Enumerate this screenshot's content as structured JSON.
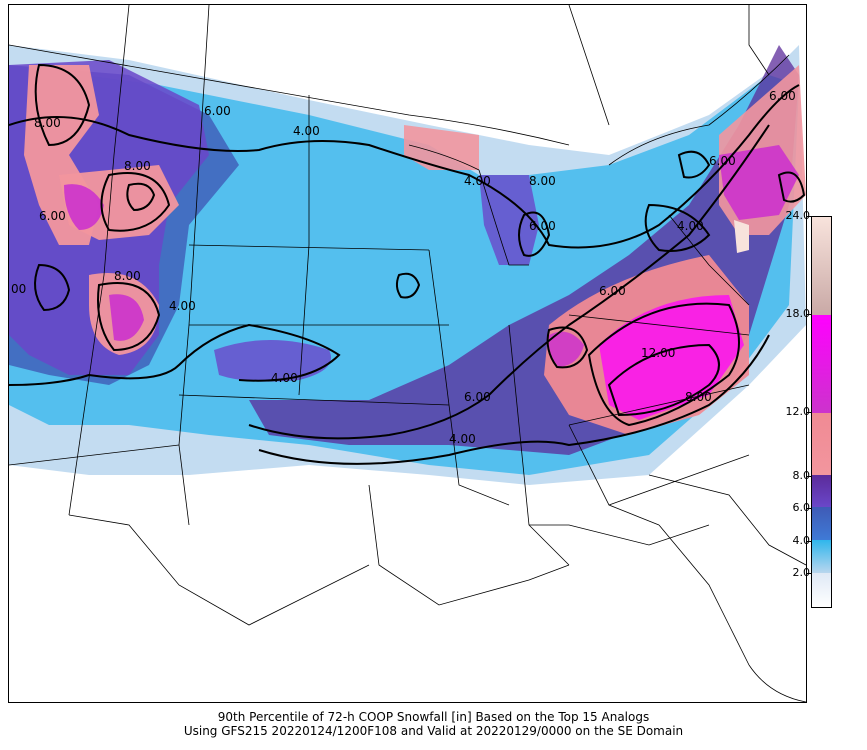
{
  "map": {
    "contour_labels": [
      "4.00",
      "4.00",
      "6.00",
      "8.00",
      "6.00",
      "8.00",
      "8.00",
      "6.00",
      "4.00",
      "6.00",
      "12.00",
      "8.00",
      "6.00",
      "4.00",
      "6.00",
      "4.00",
      "6.00",
      "4.00",
      "8.00",
      "00"
    ],
    "colors": {
      "white": "#ffffff",
      "light_blue": "#b9d6ee",
      "sky_blue": "#2fb6ec",
      "blue": "#3f7ad6",
      "dark_blue": "#3f5bb6",
      "purple": "#6a47c9",
      "dark_purple": "#5b2b9a",
      "pink_light": "#f08a94",
      "pink": "#f2969e",
      "magenta": "#cc33cc",
      "bright_magenta": "#ff00ff",
      "tan": "#c9a9a6",
      "peach": "#f8e3dc",
      "border": "#000000"
    }
  },
  "colorbar": {
    "ticks": [
      "24.0",
      "18.0",
      "12.0",
      "8.0",
      "6.0",
      "4.0",
      "2.0"
    ]
  },
  "caption": {
    "line1": "90th Percentile of 72-h COOP Snowfall [in] Based on the Top 15 Analogs",
    "line2": "Using GFS215 20220124/1200F108 and Valid at 20220129/0000 on the SE Domain"
  }
}
